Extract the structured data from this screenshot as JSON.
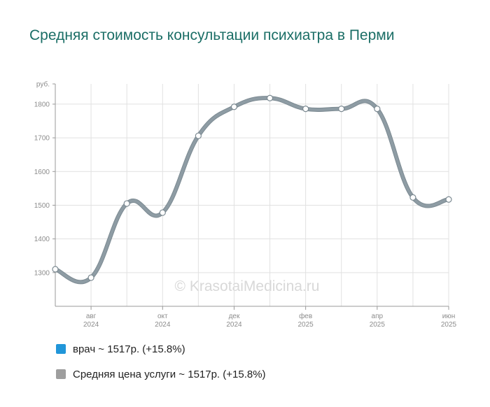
{
  "title": "Средняя стоимость консультации психиатра в Перми",
  "watermark": "© KrasotaiMedicina.ru",
  "colors": {
    "title": "#1b6e66",
    "line": "#8e9ca4",
    "line_outline": "#7c8a92",
    "grid": "#e1e1e1",
    "axis": "#999999",
    "legend_doctor": "#2196d9",
    "legend_avg": "#9e9e9e"
  },
  "legend": [
    {
      "label": "врач ~ 1517р. (+15.8%)",
      "color": "#2196d9"
    },
    {
      "label": "Средняя цена услуги ~ 1517р. (+15.8%)",
      "color": "#9e9e9e"
    }
  ],
  "chart_data": {
    "type": "line",
    "ylabel": "руб.",
    "yticks": [
      1300,
      1400,
      1500,
      1600,
      1700,
      1800
    ],
    "ylim": [
      1200,
      1860
    ],
    "x_labels": [
      {
        "month": "авг",
        "year": "2024"
      },
      {
        "month": "окт",
        "year": "2024"
      },
      {
        "month": "дек",
        "year": "2024"
      },
      {
        "month": "фев",
        "year": "2025"
      },
      {
        "month": "апр",
        "year": "2025"
      },
      {
        "month": "июн",
        "year": "2025"
      }
    ],
    "x": [
      "2024-07",
      "2024-08",
      "2024-09",
      "2024-10",
      "2024-11",
      "2024-12",
      "2025-01",
      "2025-02",
      "2025-03",
      "2025-04",
      "2025-05",
      "2025-06"
    ],
    "series": [
      {
        "values": [
          1310,
          1285,
          1505,
          1478,
          1706,
          1792,
          1818,
          1786,
          1786,
          1786,
          1523,
          1517
        ]
      }
    ],
    "grid": true
  }
}
